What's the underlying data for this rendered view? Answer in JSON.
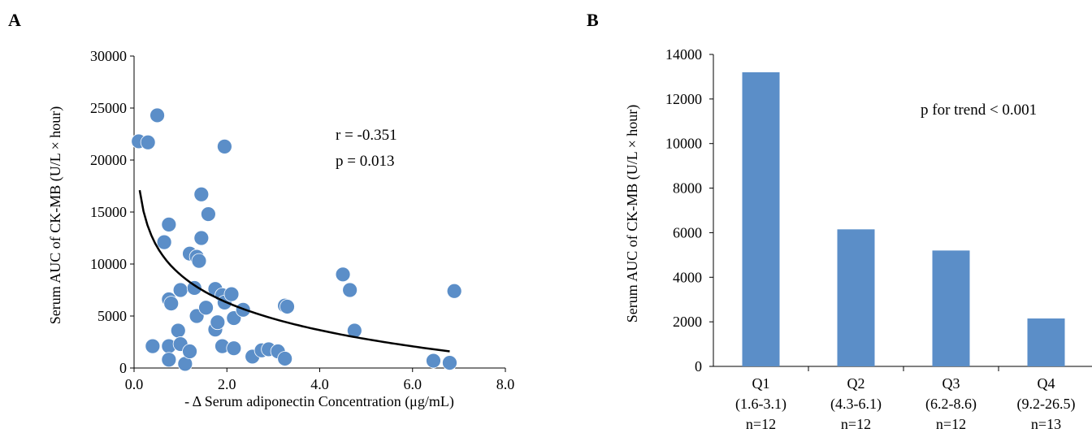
{
  "panels": {
    "a_letter": "A",
    "b_letter": "B"
  },
  "chart_data": [
    {
      "type": "scatter",
      "xlabel": "- Δ Serum adiponectin Concentration (μg/mL)",
      "ylabel": "Serum AUC of CK-MB  (U/L × hour)",
      "xlim": [
        0,
        8
      ],
      "ylim": [
        0,
        30000
      ],
      "x_ticks": [
        0,
        2,
        4,
        6,
        8
      ],
      "x_tick_labels": [
        "0.0",
        "2.0",
        "4.0",
        "6.0",
        "8.0"
      ],
      "y_ticks": [
        0,
        5000,
        10000,
        15000,
        20000,
        25000,
        30000
      ],
      "y_tick_labels": [
        "0",
        "5000",
        "10000",
        "15000",
        "20000",
        "25000",
        "30000"
      ],
      "grid": false,
      "point_color": "#5b8ec8",
      "points": [
        [
          0.1,
          21800
        ],
        [
          0.4,
          2100
        ],
        [
          0.3,
          21700
        ],
        [
          0.5,
          24300
        ],
        [
          0.65,
          12100
        ],
        [
          0.75,
          13800
        ],
        [
          0.75,
          6600
        ],
        [
          0.8,
          6200
        ],
        [
          0.75,
          2100
        ],
        [
          0.75,
          800
        ],
        [
          0.95,
          3600
        ],
        [
          1.0,
          7500
        ],
        [
          1.0,
          2300
        ],
        [
          1.1,
          400
        ],
        [
          1.2,
          11000
        ],
        [
          1.2,
          1600
        ],
        [
          1.3,
          7700
        ],
        [
          1.35,
          10700
        ],
        [
          1.35,
          5000
        ],
        [
          1.4,
          10300
        ],
        [
          1.45,
          16700
        ],
        [
          1.45,
          12500
        ],
        [
          1.55,
          5800
        ],
        [
          1.6,
          14800
        ],
        [
          1.75,
          7600
        ],
        [
          1.75,
          3700
        ],
        [
          1.8,
          4400
        ],
        [
          1.9,
          7000
        ],
        [
          1.9,
          2100
        ],
        [
          1.95,
          6300
        ],
        [
          1.95,
          21300
        ],
        [
          2.1,
          7100
        ],
        [
          2.15,
          4800
        ],
        [
          2.15,
          1900
        ],
        [
          2.35,
          5600
        ],
        [
          2.55,
          1100
        ],
        [
          2.75,
          1700
        ],
        [
          2.9,
          1800
        ],
        [
          3.1,
          1600
        ],
        [
          3.25,
          6000
        ],
        [
          3.3,
          5900
        ],
        [
          3.25,
          900
        ],
        [
          4.5,
          9000
        ],
        [
          4.65,
          7500
        ],
        [
          4.75,
          3600
        ],
        [
          6.45,
          700
        ],
        [
          6.8,
          500
        ],
        [
          6.9,
          7400
        ]
      ],
      "trendline": {
        "type": "logarithmic",
        "x_range": [
          0.12,
          6.8
        ],
        "coefficients": {
          "a": -3839,
          "b": 8963
        }
      },
      "annotations": [
        "r = -0.351",
        "p = 0.013"
      ]
    },
    {
      "type": "bar",
      "ylabel": "Serum AUC of CK-MB  (U/L × hour)",
      "ylim": [
        0,
        14000
      ],
      "y_ticks": [
        0,
        2000,
        4000,
        6000,
        8000,
        10000,
        12000,
        14000
      ],
      "y_tick_labels": [
        "0",
        "2000",
        "4000",
        "6000",
        "8000",
        "10000",
        "12000",
        "14000"
      ],
      "grid": false,
      "bar_color": "#5b8ec8",
      "categories": [
        {
          "q": "Q1",
          "range": "(1.6-3.1)",
          "n": "n=12"
        },
        {
          "q": "Q2",
          "range": "(4.3-6.1)",
          "n": "n=12"
        },
        {
          "q": "Q3",
          "range": "(6.2-8.6)",
          "n": "n=12"
        },
        {
          "q": "Q4",
          "range": "(9.2-26.5)",
          "n": "n=13"
        }
      ],
      "values": [
        13200,
        6150,
        5200,
        2150
      ],
      "annotations": [
        "p for trend < 0.001"
      ]
    }
  ]
}
